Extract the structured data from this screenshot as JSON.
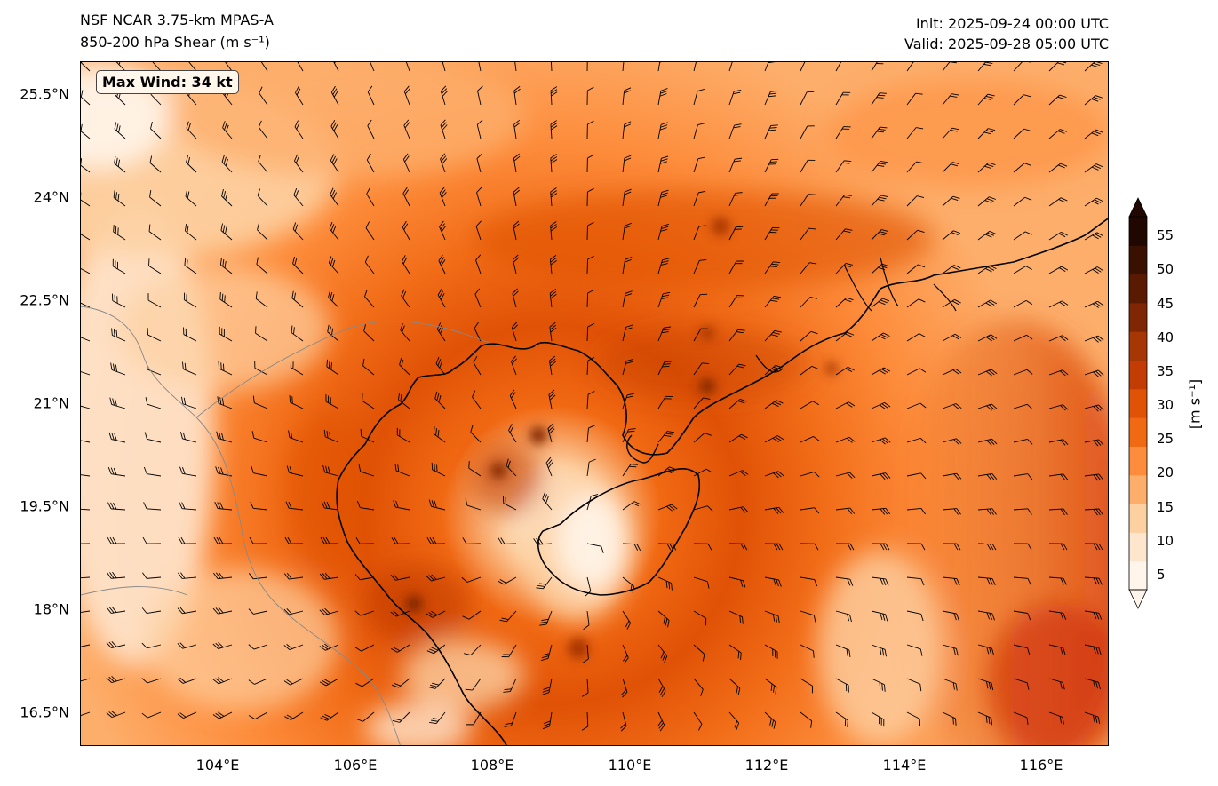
{
  "header": {
    "model_title": "NSF NCAR 3.75-km MPAS-A",
    "field_title": "850-200 hPa Shear (m s⁻¹)",
    "init_time": "Init: 2025-09-24 00:00 UTC",
    "valid_time": "Valid: 2025-09-28 05:00 UTC"
  },
  "annotation": {
    "max_wind": "Max Wind: 34 kt"
  },
  "axes": {
    "lat_ticks": [
      "25.5°N",
      "24°N",
      "22.5°N",
      "21°N",
      "19.5°N",
      "18°N",
      "16.5°N"
    ],
    "lon_ticks": [
      "104°E",
      "106°E",
      "108°E",
      "110°E",
      "112°E",
      "114°E",
      "116°E"
    ],
    "lat_range": [
      16.0,
      26.0
    ],
    "lon_range": [
      102.0,
      117.0
    ]
  },
  "colorbar": {
    "label": "[m s⁻¹]",
    "ticks": [
      "5",
      "10",
      "15",
      "20",
      "25",
      "30",
      "35",
      "40",
      "45",
      "50",
      "55"
    ],
    "extend": "both",
    "colors": [
      "#fff5eb",
      "#fee6ce",
      "#fdd0a2",
      "#fdae6b",
      "#fd8d3c",
      "#f16913",
      "#e05206",
      "#c23c03",
      "#a63603",
      "#7f2704",
      "#5a1a02",
      "#3a1001",
      "#200800"
    ]
  },
  "map": {
    "colors": {
      "coast": "#000000",
      "border": "#888888",
      "background": "#fd8d3c"
    },
    "features": [
      "shear-field",
      "wind-barbs",
      "coastline",
      "country-borders",
      "hainan-island"
    ]
  }
}
